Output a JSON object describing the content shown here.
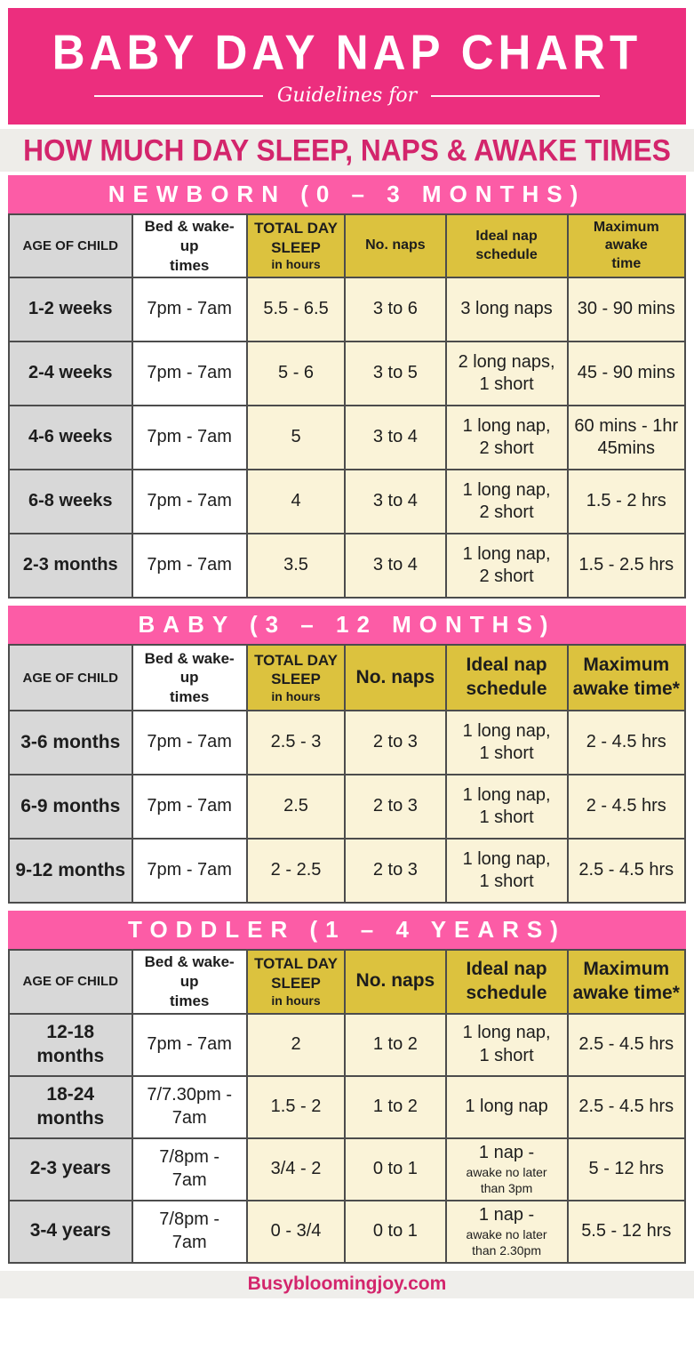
{
  "header": {
    "title": "BABY DAY NAP CHART",
    "script": "Guidelines for",
    "tagline": "HOW MUCH DAY SLEEP, NAPS & AWAKE TIMES"
  },
  "footer": {
    "site": "Busybloomingjoy.com"
  },
  "colors": {
    "banner_pink": "#ec2e7e",
    "band_pink": "#fc5ca6",
    "tagline_pink": "#d3256c",
    "tagline_bg": "#eeede9",
    "gold_header": "#dcc23e",
    "cream_cell": "#faf3d8",
    "grey_cell": "#d8d8d8",
    "grid_border": "#4c4c4c",
    "footer_bg": "#efeeeb"
  },
  "chart_data": [
    {
      "type": "table",
      "title": "NEWBORN (0 – 3 MONTHS)",
      "columns": [
        "AGE OF CHILD",
        "Bed & wake-up\ntimes",
        {
          "main": "TOTAL DAY\nSLEEP",
          "sub": "in hours"
        },
        "No. naps",
        "Ideal nap\nschedule",
        "Maximum awake\ntime"
      ],
      "rows": [
        [
          "1-2 weeks",
          "7pm - 7am",
          "5.5 - 6.5",
          "3 to 6",
          "3 long naps",
          "30 - 90 mins"
        ],
        [
          "2-4 weeks",
          "7pm - 7am",
          "5 - 6",
          "3 to 5",
          "2 long naps,\n1 short",
          "45 - 90 mins"
        ],
        [
          "4-6 weeks",
          "7pm - 7am",
          "5",
          "3 to 4",
          "1 long nap,\n2 short",
          "60 mins - 1hr\n45mins"
        ],
        [
          "6-8 weeks",
          "7pm - 7am",
          "4",
          "3 to 4",
          "1 long nap,\n2 short",
          "1.5 - 2 hrs"
        ],
        [
          "2-3 months",
          "7pm - 7am",
          "3.5",
          "3 to 4",
          "1 long nap,\n2 short",
          "1.5 - 2.5 hrs"
        ]
      ]
    },
    {
      "type": "table",
      "title": "BABY (3 – 12 MONTHS)",
      "columns": [
        "AGE OF CHILD",
        "Bed & wake-up\ntimes",
        {
          "main": "TOTAL DAY\nSLEEP",
          "sub": "in hours"
        },
        "No. naps",
        "Ideal nap\nschedule",
        "Maximum\nawake time*"
      ],
      "rows": [
        [
          "3-6 months",
          "7pm - 7am",
          "2.5 - 3",
          "2 to 3",
          "1 long nap,\n1 short",
          "2 - 4.5 hrs"
        ],
        [
          "6-9 months",
          "7pm - 7am",
          "2.5",
          "2 to 3",
          "1 long nap,\n1 short",
          "2 - 4.5 hrs"
        ],
        [
          "9-12 months",
          "7pm - 7am",
          "2 - 2.5",
          "2 to 3",
          "1 long nap,\n1 short",
          "2.5 - 4.5 hrs"
        ]
      ]
    },
    {
      "type": "table",
      "title": "TODDLER (1 – 4 YEARS)",
      "columns": [
        "AGE OF CHILD",
        "Bed & wake-up\ntimes",
        {
          "main": "TOTAL DAY\nSLEEP",
          "sub": "in hours"
        },
        "No. naps",
        "Ideal nap\nschedule",
        "Maximum\nawake time*"
      ],
      "rows": [
        [
          "12-18\nmonths",
          "7pm - 7am",
          "2",
          "1 to 2",
          "1 long nap,\n1 short",
          "2.5 - 4.5 hrs"
        ],
        [
          "18-24\nmonths",
          "7/7.30pm -\n7am",
          "1.5 - 2",
          "1 to 2",
          "1 long nap",
          "2.5 - 4.5 hrs"
        ],
        [
          "2-3 years",
          "7/8pm -\n7am",
          "3/4 - 2",
          "0 to 1",
          {
            "main": "1 nap -",
            "sub": "awake no later\nthan 3pm"
          },
          "5 - 12 hrs"
        ],
        [
          "3-4 years",
          "7/8pm -\n7am",
          "0 - 3/4",
          "0 to 1",
          {
            "main": "1 nap -",
            "sub": "awake no later\nthan 2.30pm"
          },
          "5.5 - 12 hrs"
        ]
      ]
    }
  ]
}
